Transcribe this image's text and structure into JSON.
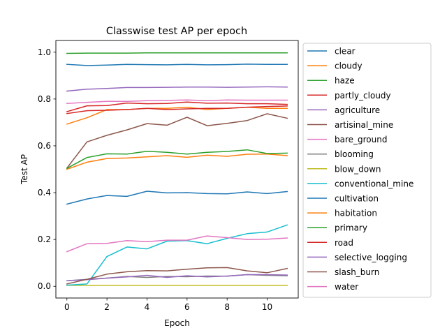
{
  "chart_data": {
    "type": "line",
    "title": "Classwise test AP per epoch",
    "xlabel": "Epoch",
    "ylabel": "Test AP",
    "xlim": [
      -0.55,
      11.55
    ],
    "ylim": [
      -0.05,
      1.05
    ],
    "xticks": [
      0,
      2,
      4,
      6,
      8,
      10
    ],
    "yticks": [
      0.0,
      0.2,
      0.4,
      0.6,
      0.8,
      1.0
    ],
    "ytick_labels": [
      "0.0",
      "0.2",
      "0.4",
      "0.6",
      "0.8",
      "1.0"
    ],
    "grid": false,
    "legend_position": "right (outside plot)",
    "x": [
      0,
      1,
      2,
      3,
      4,
      5,
      6,
      7,
      8,
      9,
      10,
      11
    ],
    "series": [
      {
        "name": "clear",
        "color": "#1f77b4",
        "values": [
          0.948,
          0.943,
          0.945,
          0.948,
          0.947,
          0.946,
          0.948,
          0.946,
          0.947,
          0.949,
          0.948,
          0.948
        ]
      },
      {
        "name": "cloudy",
        "color": "#ff7f0e",
        "values": [
          0.693,
          0.72,
          0.755,
          0.755,
          0.76,
          0.76,
          0.765,
          0.755,
          0.76,
          0.765,
          0.76,
          0.76
        ]
      },
      {
        "name": "haze",
        "color": "#2ca02c",
        "values": [
          0.995,
          0.996,
          0.996,
          0.996,
          0.997,
          0.997,
          0.997,
          0.997,
          0.997,
          0.997,
          0.997,
          0.997
        ]
      },
      {
        "name": "partly_cloudy",
        "color": "#d62728",
        "values": [
          0.738,
          0.75,
          0.752,
          0.755,
          0.76,
          0.755,
          0.758,
          0.76,
          0.76,
          0.765,
          0.768,
          0.77
        ]
      },
      {
        "name": "agriculture",
        "color": "#9467bd",
        "values": [
          0.834,
          0.842,
          0.845,
          0.849,
          0.849,
          0.85,
          0.851,
          0.851,
          0.85,
          0.851,
          0.852,
          0.851
        ]
      },
      {
        "name": "artisinal_mine",
        "color": "#8c564b",
        "values": [
          0.505,
          0.617,
          0.645,
          0.668,
          0.695,
          0.688,
          0.722,
          0.686,
          0.696,
          0.708,
          0.737,
          0.718
        ]
      },
      {
        "name": "bare_ground",
        "color": "#e377c2",
        "values": [
          0.781,
          0.786,
          0.79,
          0.79,
          0.793,
          0.794,
          0.796,
          0.793,
          0.796,
          0.795,
          0.795,
          0.795
        ]
      },
      {
        "name": "blooming",
        "color": "#7f7f7f",
        "values": [
          0.024,
          0.03,
          0.035,
          0.042,
          0.038,
          0.042,
          0.041,
          0.044,
          0.043,
          0.05,
          0.047,
          0.045
        ]
      },
      {
        "name": "blow_down",
        "color": "#bcbd22",
        "values": [
          0.004,
          0.004,
          0.004,
          0.004,
          0.004,
          0.004,
          0.004,
          0.004,
          0.004,
          0.004,
          0.004,
          0.004
        ]
      },
      {
        "name": "conventional_mine",
        "color": "#17becf",
        "values": [
          0.005,
          0.01,
          0.127,
          0.168,
          0.16,
          0.193,
          0.195,
          0.182,
          0.205,
          0.225,
          0.232,
          0.262
        ]
      },
      {
        "name": "cultivation",
        "color": "#1f77b4",
        "values": [
          0.351,
          0.373,
          0.388,
          0.384,
          0.406,
          0.399,
          0.4,
          0.396,
          0.395,
          0.403,
          0.396,
          0.405
        ]
      },
      {
        "name": "habitation",
        "color": "#ff7f0e",
        "values": [
          0.5,
          0.53,
          0.546,
          0.548,
          0.553,
          0.558,
          0.551,
          0.56,
          0.555,
          0.564,
          0.565,
          0.558
        ]
      },
      {
        "name": "primary",
        "color": "#2ca02c",
        "values": [
          0.504,
          0.55,
          0.566,
          0.565,
          0.577,
          0.572,
          0.565,
          0.572,
          0.576,
          0.583,
          0.567,
          0.569
        ]
      },
      {
        "name": "road",
        "color": "#d62728",
        "values": [
          0.746,
          0.771,
          0.772,
          0.783,
          0.78,
          0.781,
          0.787,
          0.782,
          0.783,
          0.78,
          0.78,
          0.777
        ]
      },
      {
        "name": "selective_logging",
        "color": "#9467bd",
        "values": [
          0.024,
          0.028,
          0.035,
          0.04,
          0.047,
          0.038,
          0.045,
          0.04,
          0.044,
          0.05,
          0.05,
          0.048
        ]
      },
      {
        "name": "slash_burn",
        "color": "#8c564b",
        "values": [
          0.01,
          0.03,
          0.052,
          0.062,
          0.067,
          0.066,
          0.073,
          0.079,
          0.08,
          0.066,
          0.058,
          0.076
        ]
      },
      {
        "name": "water",
        "color": "#e377c2",
        "values": [
          0.148,
          0.182,
          0.183,
          0.195,
          0.191,
          0.197,
          0.197,
          0.215,
          0.208,
          0.2,
          0.201,
          0.206
        ]
      }
    ]
  }
}
